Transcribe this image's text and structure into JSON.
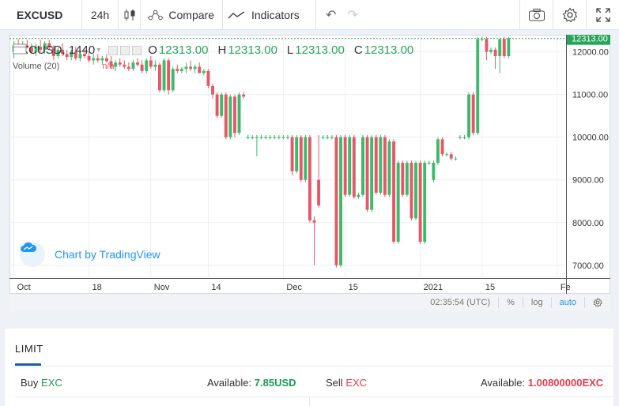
{
  "toolbar": {
    "symbol": "EXCUSD",
    "interval": "24h",
    "compare_label": "Compare",
    "indicators_label": "Indicators"
  },
  "legend": {
    "title": "EXCUSD, 1440",
    "o_label": "O",
    "o_value": "12313.00",
    "h_label": "H",
    "h_value": "12313.00",
    "l_label": "L",
    "l_value": "12313.00",
    "c_label": "C",
    "c_value": "12313.00",
    "volume_label": "Volume (20)",
    "volume_value": "n/a"
  },
  "watermark": "Chart by TradingView",
  "price_badge": "12313.00",
  "statusbar": {
    "time": "02:35:54 (UTC)",
    "percent": "%",
    "log": "log",
    "auto": "auto"
  },
  "colors": {
    "up": "#3fb96b",
    "down": "#e25a68",
    "accent": "#2196f3",
    "price_badge": "#26a65b"
  },
  "chart_data": {
    "type": "candlestick",
    "y_ticks": [
      "7000.00",
      "8000.00",
      "9000.00",
      "10000.00",
      "11000.00",
      "12000.00"
    ],
    "y_tick_values": [
      7000,
      8000,
      9000,
      10000,
      11000,
      12000
    ],
    "ylim": [
      6700,
      12400
    ],
    "x_ticks": [
      "Oct",
      "18",
      "Nov",
      "14",
      "Dec",
      "15",
      "2021",
      "15",
      "Fe"
    ],
    "x_tick_days": [
      0,
      17,
      31,
      44,
      61,
      75,
      92,
      106,
      123
    ],
    "xlim": [
      -1,
      125
    ],
    "last_price": 12313,
    "candles": [
      {
        "day": 0,
        "o": 12000,
        "h": 12250,
        "l": 11850,
        "c": 12150
      },
      {
        "day": 1,
        "o": 12150,
        "h": 12300,
        "l": 12000,
        "c": 12050
      },
      {
        "day": 2,
        "o": 12050,
        "h": 12250,
        "l": 11950,
        "c": 12150
      },
      {
        "day": 3,
        "o": 12150,
        "h": 12280,
        "l": 12080,
        "c": 12100
      },
      {
        "day": 4,
        "o": 12100,
        "h": 12200,
        "l": 11950,
        "c": 12000
      },
      {
        "day": 5,
        "o": 12000,
        "h": 12200,
        "l": 11900,
        "c": 12120
      },
      {
        "day": 6,
        "o": 12120,
        "h": 12280,
        "l": 12000,
        "c": 12050
      },
      {
        "day": 7,
        "o": 12050,
        "h": 12250,
        "l": 11950,
        "c": 12200
      },
      {
        "day": 8,
        "o": 12200,
        "h": 12280,
        "l": 12050,
        "c": 12100
      },
      {
        "day": 9,
        "o": 12100,
        "h": 12150,
        "l": 11800,
        "c": 11900
      },
      {
        "day": 10,
        "o": 11900,
        "h": 12100,
        "l": 11850,
        "c": 12050
      },
      {
        "day": 11,
        "o": 12050,
        "h": 12200,
        "l": 11900,
        "c": 11950
      },
      {
        "day": 12,
        "o": 11950,
        "h": 12050,
        "l": 11800,
        "c": 11880
      },
      {
        "day": 13,
        "o": 11880,
        "h": 12050,
        "l": 11800,
        "c": 12000
      },
      {
        "day": 14,
        "o": 12000,
        "h": 12120,
        "l": 11800,
        "c": 11850
      },
      {
        "day": 15,
        "o": 11850,
        "h": 12000,
        "l": 11780,
        "c": 11950
      },
      {
        "day": 16,
        "o": 11950,
        "h": 12050,
        "l": 11850,
        "c": 11900
      },
      {
        "day": 17,
        "o": 11900,
        "h": 12000,
        "l": 11750,
        "c": 11800
      },
      {
        "day": 18,
        "o": 11800,
        "h": 11950,
        "l": 11700,
        "c": 11850
      },
      {
        "day": 19,
        "o": 11850,
        "h": 11950,
        "l": 11750,
        "c": 11800
      },
      {
        "day": 20,
        "o": 11800,
        "h": 11900,
        "l": 11700,
        "c": 11850
      },
      {
        "day": 21,
        "o": 11850,
        "h": 11950,
        "l": 11750,
        "c": 11780
      },
      {
        "day": 22,
        "o": 11780,
        "h": 11900,
        "l": 11600,
        "c": 11650
      },
      {
        "day": 23,
        "o": 11650,
        "h": 11800,
        "l": 11550,
        "c": 11750
      },
      {
        "day": 24,
        "o": 11750,
        "h": 11850,
        "l": 11650,
        "c": 11700
      },
      {
        "day": 25,
        "o": 11700,
        "h": 11800,
        "l": 11600,
        "c": 11650
      },
      {
        "day": 26,
        "o": 11650,
        "h": 11750,
        "l": 11550,
        "c": 11600
      },
      {
        "day": 27,
        "o": 11600,
        "h": 11800,
        "l": 11550,
        "c": 11750
      },
      {
        "day": 28,
        "o": 11750,
        "h": 11850,
        "l": 11650,
        "c": 11700
      },
      {
        "day": 29,
        "o": 11700,
        "h": 11800,
        "l": 11500,
        "c": 11550
      },
      {
        "day": 30,
        "o": 11550,
        "h": 11850,
        "l": 11500,
        "c": 11800
      },
      {
        "day": 31,
        "o": 11800,
        "h": 11900,
        "l": 11600,
        "c": 11650
      },
      {
        "day": 32,
        "o": 11650,
        "h": 11800,
        "l": 11550,
        "c": 11700
      },
      {
        "day": 33,
        "o": 11700,
        "h": 11750,
        "l": 11050,
        "c": 11100
      },
      {
        "day": 34,
        "o": 11100,
        "h": 11850,
        "l": 11050,
        "c": 11800
      },
      {
        "day": 35,
        "o": 11800,
        "h": 11850,
        "l": 11000,
        "c": 11100
      },
      {
        "day": 36,
        "o": 11100,
        "h": 11650,
        "l": 11050,
        "c": 11600
      },
      {
        "day": 37,
        "o": 11600,
        "h": 11700,
        "l": 11500,
        "c": 11550
      },
      {
        "day": 38,
        "o": 11550,
        "h": 11650,
        "l": 11500,
        "c": 11600
      },
      {
        "day": 39,
        "o": 11600,
        "h": 11750,
        "l": 11500,
        "c": 11650
      },
      {
        "day": 40,
        "o": 11650,
        "h": 11800,
        "l": 11550,
        "c": 11600
      },
      {
        "day": 41,
        "o": 11600,
        "h": 11700,
        "l": 11500,
        "c": 11650
      },
      {
        "day": 42,
        "o": 11650,
        "h": 11750,
        "l": 11550,
        "c": 11500
      },
      {
        "day": 43,
        "o": 11500,
        "h": 11600,
        "l": 11450,
        "c": 11550
      },
      {
        "day": 44,
        "o": 11550,
        "h": 11600,
        "l": 11150,
        "c": 11200
      },
      {
        "day": 45,
        "o": 11200,
        "h": 11250,
        "l": 10900,
        "c": 11000
      },
      {
        "day": 46,
        "o": 11000,
        "h": 11050,
        "l": 10450,
        "c": 10500
      },
      {
        "day": 47,
        "o": 10500,
        "h": 11050,
        "l": 10450,
        "c": 11000
      },
      {
        "day": 48,
        "o": 11000,
        "h": 11050,
        "l": 9950,
        "c": 10000
      },
      {
        "day": 49,
        "o": 10000,
        "h": 11000,
        "l": 9950,
        "c": 10950
      },
      {
        "day": 50,
        "o": 10950,
        "h": 11000,
        "l": 10000,
        "c": 10100
      },
      {
        "day": 51,
        "o": 10100,
        "h": 11050,
        "l": 10050,
        "c": 11000
      },
      {
        "day": 52,
        "o": 11000,
        "h": 11050,
        "l": 10900,
        "c": 10950
      },
      {
        "day": 53,
        "o": 10000,
        "h": 10050,
        "l": 9950,
        "c": 10000
      },
      {
        "day": 54,
        "o": 10000,
        "h": 10050,
        "l": 9950,
        "c": 10000
      },
      {
        "day": 55,
        "o": 10000,
        "h": 10050,
        "l": 9550,
        "c": 10000
      },
      {
        "day": 56,
        "o": 10000,
        "h": 10050,
        "l": 9950,
        "c": 10000
      },
      {
        "day": 57,
        "o": 10000,
        "h": 10050,
        "l": 9950,
        "c": 10000
      },
      {
        "day": 58,
        "o": 10000,
        "h": 10050,
        "l": 9950,
        "c": 10000
      },
      {
        "day": 59,
        "o": 10000,
        "h": 10050,
        "l": 9950,
        "c": 10000
      },
      {
        "day": 60,
        "o": 10000,
        "h": 10050,
        "l": 9950,
        "c": 10000
      },
      {
        "day": 61,
        "o": 10000,
        "h": 10050,
        "l": 9950,
        "c": 10000
      },
      {
        "day": 62,
        "o": 10000,
        "h": 10050,
        "l": 9950,
        "c": 10000
      },
      {
        "day": 63,
        "o": 10000,
        "h": 10050,
        "l": 9100,
        "c": 9200
      },
      {
        "day": 64,
        "o": 9200,
        "h": 10050,
        "l": 9150,
        "c": 10000
      },
      {
        "day": 65,
        "o": 10000,
        "h": 10050,
        "l": 8950,
        "c": 9000
      },
      {
        "day": 66,
        "o": 9000,
        "h": 10050,
        "l": 8950,
        "c": 10000
      },
      {
        "day": 67,
        "o": 10000,
        "h": 10050,
        "l": 8000,
        "c": 8050
      },
      {
        "day": 68,
        "o": 8050,
        "h": 8150,
        "l": 7000,
        "c": 8000
      },
      {
        "day": 69,
        "o": 9000,
        "h": 10050,
        "l": 8350,
        "c": 8400
      },
      {
        "day": 70,
        "o": 10000,
        "h": 10050,
        "l": 9950,
        "c": 10000
      },
      {
        "day": 71,
        "o": 10000,
        "h": 10050,
        "l": 9950,
        "c": 10000
      },
      {
        "day": 72,
        "o": 10000,
        "h": 10050,
        "l": 9950,
        "c": 10000
      },
      {
        "day": 73,
        "o": 10000,
        "h": 10050,
        "l": 6950,
        "c": 7000
      },
      {
        "day": 74,
        "o": 7000,
        "h": 10050,
        "l": 6950,
        "c": 10000
      },
      {
        "day": 75,
        "o": 10000,
        "h": 10050,
        "l": 8600,
        "c": 8650
      },
      {
        "day": 76,
        "o": 8650,
        "h": 10050,
        "l": 8600,
        "c": 10000
      },
      {
        "day": 77,
        "o": 10000,
        "h": 10050,
        "l": 8550,
        "c": 8600
      },
      {
        "day": 78,
        "o": 8600,
        "h": 8700,
        "l": 8550,
        "c": 8650
      },
      {
        "day": 79,
        "o": 8650,
        "h": 10050,
        "l": 8600,
        "c": 10000
      },
      {
        "day": 80,
        "o": 10000,
        "h": 10050,
        "l": 8250,
        "c": 8300
      },
      {
        "day": 81,
        "o": 8300,
        "h": 10050,
        "l": 8250,
        "c": 10000
      },
      {
        "day": 82,
        "o": 10000,
        "h": 10050,
        "l": 8650,
        "c": 8700
      },
      {
        "day": 83,
        "o": 8700,
        "h": 10050,
        "l": 8650,
        "c": 10000
      },
      {
        "day": 84,
        "o": 10000,
        "h": 10050,
        "l": 8600,
        "c": 8650
      },
      {
        "day": 85,
        "o": 8650,
        "h": 9950,
        "l": 8600,
        "c": 9900
      },
      {
        "day": 86,
        "o": 9900,
        "h": 9950,
        "l": 7500,
        "c": 7550
      },
      {
        "day": 87,
        "o": 7550,
        "h": 9450,
        "l": 7500,
        "c": 9400
      },
      {
        "day": 88,
        "o": 9400,
        "h": 9450,
        "l": 8600,
        "c": 8650
      },
      {
        "day": 89,
        "o": 8650,
        "h": 9450,
        "l": 8600,
        "c": 9400
      },
      {
        "day": 90,
        "o": 9400,
        "h": 9450,
        "l": 8050,
        "c": 8100
      },
      {
        "day": 91,
        "o": 8100,
        "h": 9450,
        "l": 8050,
        "c": 9400
      },
      {
        "day": 92,
        "o": 9400,
        "h": 9450,
        "l": 7500,
        "c": 7550
      },
      {
        "day": 93,
        "o": 7550,
        "h": 9450,
        "l": 7500,
        "c": 9400
      },
      {
        "day": 94,
        "o": 9400,
        "h": 9450,
        "l": 9350,
        "c": 9400
      },
      {
        "day": 95,
        "o": 9000,
        "h": 9450,
        "l": 8950,
        "c": 9400
      },
      {
        "day": 96,
        "o": 9400,
        "h": 10000,
        "l": 9350,
        "c": 9950
      },
      {
        "day": 97,
        "o": 9950,
        "h": 10000,
        "l": 9550,
        "c": 9600
      },
      {
        "day": 98,
        "o": 9600,
        "h": 9650,
        "l": 9550,
        "c": 9600
      },
      {
        "day": 99,
        "o": 9600,
        "h": 9650,
        "l": 9450,
        "c": 9500
      },
      {
        "day": 100,
        "o": 9500,
        "h": 9550,
        "l": 9450,
        "c": 9500
      },
      {
        "day": 101,
        "o": 10000,
        "h": 10050,
        "l": 9950,
        "c": 10000
      },
      {
        "day": 102,
        "o": 10000,
        "h": 10050,
        "l": 9950,
        "c": 10000
      },
      {
        "day": 103,
        "o": 10000,
        "h": 11050,
        "l": 9950,
        "c": 11000
      },
      {
        "day": 104,
        "o": 11000,
        "h": 11050,
        "l": 10050,
        "c": 10100
      },
      {
        "day": 105,
        "o": 10100,
        "h": 12350,
        "l": 10050,
        "c": 12300
      },
      {
        "day": 106,
        "o": 12300,
        "h": 12350,
        "l": 12250,
        "c": 12300
      },
      {
        "day": 107,
        "o": 12300,
        "h": 12350,
        "l": 11800,
        "c": 12000
      },
      {
        "day": 108,
        "o": 12000,
        "h": 12100,
        "l": 11950,
        "c": 12050
      },
      {
        "day": 109,
        "o": 12050,
        "h": 12100,
        "l": 11600,
        "c": 11900
      },
      {
        "day": 110,
        "o": 11900,
        "h": 12300,
        "l": 11500,
        "c": 12300
      },
      {
        "day": 111,
        "o": 12300,
        "h": 12350,
        "l": 11850,
        "c": 11900
      },
      {
        "day": 112,
        "o": 11900,
        "h": 12350,
        "l": 11850,
        "c": 12313
      }
    ]
  },
  "panel": {
    "tab_label": "LIMIT",
    "buy_label": "Buy",
    "buy_currency": "EXC",
    "buy_available_label": "Available:",
    "buy_available_value": "7.85USD",
    "sell_label": "Sell",
    "sell_currency": "EXC",
    "sell_available_label": "Available:",
    "sell_available_value": "1.00800000EXC"
  }
}
